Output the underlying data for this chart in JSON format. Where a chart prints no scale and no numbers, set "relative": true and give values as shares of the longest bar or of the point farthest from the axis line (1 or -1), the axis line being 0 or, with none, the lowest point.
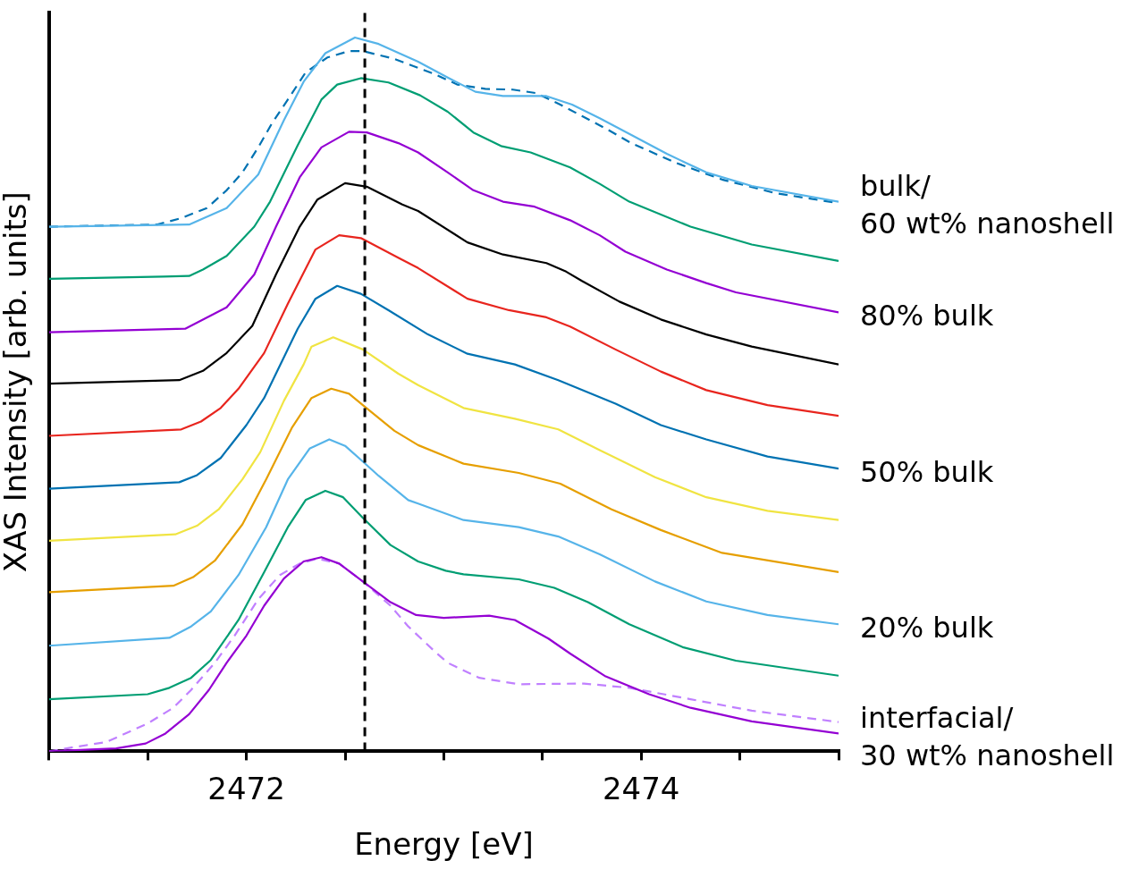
{
  "chart_data": {
    "type": "line",
    "xlabel": "Energy [eV]",
    "ylabel": "XAS Intensity [arb. units]",
    "relative": true,
    "grid": false,
    "legend": false,
    "marker": "none",
    "xlim": [
      2471,
      2475
    ],
    "xticks": [
      {
        "value": 2471,
        "label": null
      },
      {
        "value": 2471.5,
        "label": null
      },
      2472,
      {
        "value": 2472.5,
        "label": null
      },
      {
        "value": 2473,
        "label": null
      },
      {
        "value": 2473.5,
        "label": null
      },
      2474,
      {
        "value": 2474.5,
        "label": null
      },
      {
        "value": 2475,
        "label": null
      }
    ],
    "ref_lines": [
      {
        "axis": "x",
        "value": 2472.6,
        "label": null,
        "color": "#000000",
        "line_style": "dashed"
      }
    ],
    "series": [
      {
        "name": "bulk/\n60 wt% nanoshell",
        "color": "#56b4e9",
        "line_style": "solid",
        "x": [
          2471.0,
          2471.71,
          2471.9,
          2472.06,
          2472.19,
          2472.29,
          2472.4,
          2472.55,
          2472.67,
          2472.87,
          2473.02,
          2473.16,
          2473.3,
          2473.52,
          2473.65,
          2473.79,
          2473.94,
          2474.13,
          2474.33,
          2474.56,
          2475.0
        ],
        "values": [
          0.735,
          0.738,
          0.761,
          0.808,
          0.884,
          0.938,
          0.978,
          1,
          0.991,
          0.966,
          0.944,
          0.924,
          0.918,
          0.918,
          0.906,
          0.887,
          0.865,
          0.837,
          0.811,
          0.792,
          0.77
        ]
      },
      {
        "color": "#0072b2",
        "line_style": "dashed",
        "x": [
          2471.0,
          2471.55,
          2471.67,
          2471.8,
          2471.9,
          2471.98,
          2472.06,
          2472.13,
          2472.21,
          2472.3,
          2472.41,
          2472.52,
          2472.59,
          2472.75,
          2472.95,
          2473.07,
          2473.21,
          2473.35,
          2473.47,
          2473.59,
          2473.7,
          2473.83,
          2473.95,
          2474.18,
          2474.41,
          2474.68,
          2475.0
        ],
        "values": [
          0.735,
          0.738,
          0.747,
          0.761,
          0.786,
          0.811,
          0.846,
          0.88,
          0.913,
          0.951,
          0.972,
          0.981,
          0.981,
          0.97,
          0.949,
          0.934,
          0.928,
          0.927,
          0.922,
          0.906,
          0.89,
          0.871,
          0.852,
          0.824,
          0.801,
          0.782,
          0.768
        ]
      },
      {
        "color": "#009e73",
        "line_style": "solid",
        "x": [
          2471.0,
          2471.58,
          2471.71,
          2471.78,
          2471.9,
          2472.04,
          2472.12,
          2472.26,
          2472.38,
          2472.46,
          2472.58,
          2472.72,
          2472.88,
          2473.02,
          2473.15,
          2473.29,
          2473.44,
          2473.64,
          2473.79,
          2473.94,
          2474.25,
          2474.56,
          2475.0
        ],
        "values": [
          0.662,
          0.665,
          0.666,
          0.675,
          0.694,
          0.735,
          0.77,
          0.849,
          0.913,
          0.934,
          0.943,
          0.937,
          0.919,
          0.896,
          0.867,
          0.848,
          0.839,
          0.818,
          0.795,
          0.77,
          0.735,
          0.71,
          0.687
        ]
      },
      {
        "name": "80% bulk",
        "color": "#9400d3",
        "line_style": "solid",
        "x": [
          2471.0,
          2471.69,
          2471.9,
          2472.04,
          2472.15,
          2472.27,
          2472.38,
          2472.52,
          2472.61,
          2472.77,
          2472.87,
          2473.02,
          2473.15,
          2473.3,
          2473.46,
          2473.64,
          2473.79,
          2473.92,
          2474.13,
          2474.33,
          2474.48,
          2475.0
        ],
        "values": [
          0.587,
          0.592,
          0.622,
          0.668,
          0.735,
          0.804,
          0.846,
          0.868,
          0.867,
          0.852,
          0.839,
          0.811,
          0.786,
          0.77,
          0.763,
          0.744,
          0.723,
          0.7,
          0.675,
          0.656,
          0.643,
          0.615
        ]
      },
      {
        "color": "#000000",
        "line_style": "solid",
        "x": [
          2471.0,
          2471.66,
          2471.78,
          2471.9,
          2472.03,
          2472.15,
          2472.27,
          2472.36,
          2472.5,
          2472.61,
          2472.79,
          2472.87,
          2473.12,
          2473.3,
          2473.52,
          2473.62,
          2473.7,
          2473.89,
          2474.1,
          2474.33,
          2474.56,
          2475.0
        ],
        "values": [
          0.515,
          0.52,
          0.533,
          0.558,
          0.596,
          0.668,
          0.735,
          0.773,
          0.796,
          0.791,
          0.766,
          0.757,
          0.713,
          0.696,
          0.684,
          0.672,
          0.659,
          0.63,
          0.605,
          0.584,
          0.567,
          0.542
        ]
      },
      {
        "color": "#e8251e",
        "line_style": "solid",
        "x": [
          2471.0,
          2471.67,
          2471.77,
          2471.87,
          2471.96,
          2472.09,
          2472.21,
          2472.35,
          2472.47,
          2472.58,
          2472.78,
          2472.87,
          2473.12,
          2473.33,
          2473.52,
          2473.64,
          2473.87,
          2474.1,
          2474.33,
          2474.64,
          2475.0
        ],
        "values": [
          0.442,
          0.451,
          0.462,
          0.481,
          0.508,
          0.558,
          0.627,
          0.703,
          0.723,
          0.719,
          0.69,
          0.677,
          0.634,
          0.618,
          0.608,
          0.595,
          0.563,
          0.532,
          0.506,
          0.485,
          0.47
        ]
      },
      {
        "name": "50% bulk",
        "color": "#0072b2",
        "line_style": "solid",
        "x": [
          2471.0,
          2471.66,
          2471.75,
          2471.87,
          2472.0,
          2472.09,
          2472.26,
          2472.35,
          2472.46,
          2472.58,
          2472.72,
          2472.92,
          2473.12,
          2473.36,
          2473.58,
          2473.87,
          2474.1,
          2474.33,
          2474.64,
          2475.0
        ],
        "values": [
          0.368,
          0.377,
          0.387,
          0.411,
          0.457,
          0.495,
          0.592,
          0.634,
          0.652,
          0.641,
          0.618,
          0.584,
          0.557,
          0.542,
          0.52,
          0.487,
          0.457,
          0.437,
          0.413,
          0.396
        ]
      },
      {
        "color": "#f0e442",
        "line_style": "solid",
        "x": [
          2471.0,
          2471.64,
          2471.75,
          2471.86,
          2471.98,
          2472.07,
          2472.19,
          2472.29,
          2472.33,
          2472.44,
          2472.59,
          2472.77,
          2472.87,
          2473.1,
          2473.36,
          2473.58,
          2473.79,
          2474.07,
          2474.33,
          2474.64,
          2475.0
        ],
        "values": [
          0.295,
          0.304,
          0.316,
          0.339,
          0.381,
          0.419,
          0.491,
          0.542,
          0.567,
          0.58,
          0.563,
          0.529,
          0.513,
          0.481,
          0.466,
          0.451,
          0.422,
          0.384,
          0.356,
          0.337,
          0.324
        ]
      },
      {
        "color": "#e69f00",
        "line_style": "solid",
        "x": [
          2471.0,
          2471.63,
          2471.73,
          2471.84,
          2471.98,
          2472.1,
          2472.23,
          2472.33,
          2472.43,
          2472.52,
          2472.59,
          2472.75,
          2472.87,
          2473.1,
          2473.38,
          2473.59,
          2473.85,
          2474.1,
          2474.41,
          2475.0
        ],
        "values": [
          0.223,
          0.232,
          0.244,
          0.267,
          0.318,
          0.381,
          0.453,
          0.495,
          0.508,
          0.501,
          0.485,
          0.449,
          0.429,
          0.403,
          0.39,
          0.375,
          0.339,
          0.31,
          0.278,
          0.251
        ]
      },
      {
        "name": "20% bulk",
        "color": "#56b4e9",
        "line_style": "solid",
        "x": [
          2471.0,
          2471.61,
          2471.72,
          2471.82,
          2471.96,
          2472.1,
          2472.21,
          2472.32,
          2472.42,
          2472.5,
          2472.59,
          2472.67,
          2472.82,
          2472.87,
          2473.1,
          2473.38,
          2473.58,
          2473.79,
          2474.07,
          2474.33,
          2474.64,
          2475.0
        ],
        "values": [
          0.148,
          0.159,
          0.175,
          0.196,
          0.247,
          0.314,
          0.381,
          0.424,
          0.437,
          0.428,
          0.406,
          0.386,
          0.352,
          0.347,
          0.324,
          0.314,
          0.301,
          0.276,
          0.238,
          0.21,
          0.191,
          0.178
        ]
      },
      {
        "color": "#009e73",
        "line_style": "solid",
        "x": [
          2471.0,
          2471.5,
          2471.61,
          2471.72,
          2471.82,
          2471.96,
          2472.09,
          2472.21,
          2472.3,
          2472.4,
          2472.49,
          2472.59,
          2472.73,
          2472.87,
          2473.01,
          2473.1,
          2473.38,
          2473.56,
          2473.73,
          2473.94,
          2474.21,
          2474.48,
          2475.0
        ],
        "values": [
          0.073,
          0.08,
          0.089,
          0.103,
          0.128,
          0.184,
          0.251,
          0.314,
          0.352,
          0.365,
          0.356,
          0.327,
          0.289,
          0.266,
          0.253,
          0.248,
          0.241,
          0.229,
          0.209,
          0.178,
          0.146,
          0.127,
          0.106
        ]
      },
      {
        "name": "interfacial/\n30 wt% nanoshell",
        "color": "#9400d3",
        "line_style": "solid",
        "x": [
          2471.0,
          2471.34,
          2471.49,
          2471.59,
          2471.71,
          2471.81,
          2471.9,
          2472.0,
          2472.09,
          2472.19,
          2472.29,
          2472.38,
          2472.47,
          2472.59,
          2472.73,
          2472.86,
          2473.0,
          2473.23,
          2473.36,
          2473.53,
          2473.64,
          2473.82,
          2474.04,
          2474.25,
          2474.56,
          2475.0
        ],
        "values": [
          0,
          0.004,
          0.011,
          0.025,
          0.052,
          0.086,
          0.124,
          0.162,
          0.204,
          0.242,
          0.266,
          0.272,
          0.263,
          0.238,
          0.209,
          0.191,
          0.187,
          0.19,
          0.184,
          0.158,
          0.137,
          0.105,
          0.08,
          0.061,
          0.042,
          0.025
        ]
      },
      {
        "color": "#c080ff",
        "line_style": "dashed",
        "x": [
          2471.0,
          2471.13,
          2471.29,
          2471.5,
          2471.63,
          2471.72,
          2471.84,
          2471.94,
          2472.06,
          2472.17,
          2472.27,
          2472.36,
          2472.47,
          2472.59,
          2472.73,
          2472.82,
          2472.95,
          2473.02,
          2473.18,
          2473.38,
          2473.71,
          2473.94,
          2474.25,
          2474.56,
          2475.0
        ],
        "values": [
          0,
          0.006,
          0.013,
          0.039,
          0.061,
          0.086,
          0.124,
          0.162,
          0.213,
          0.247,
          0.263,
          0.27,
          0.263,
          0.238,
          0.204,
          0.175,
          0.141,
          0.124,
          0.103,
          0.094,
          0.095,
          0.089,
          0.073,
          0.057,
          0.041
        ]
      }
    ]
  }
}
